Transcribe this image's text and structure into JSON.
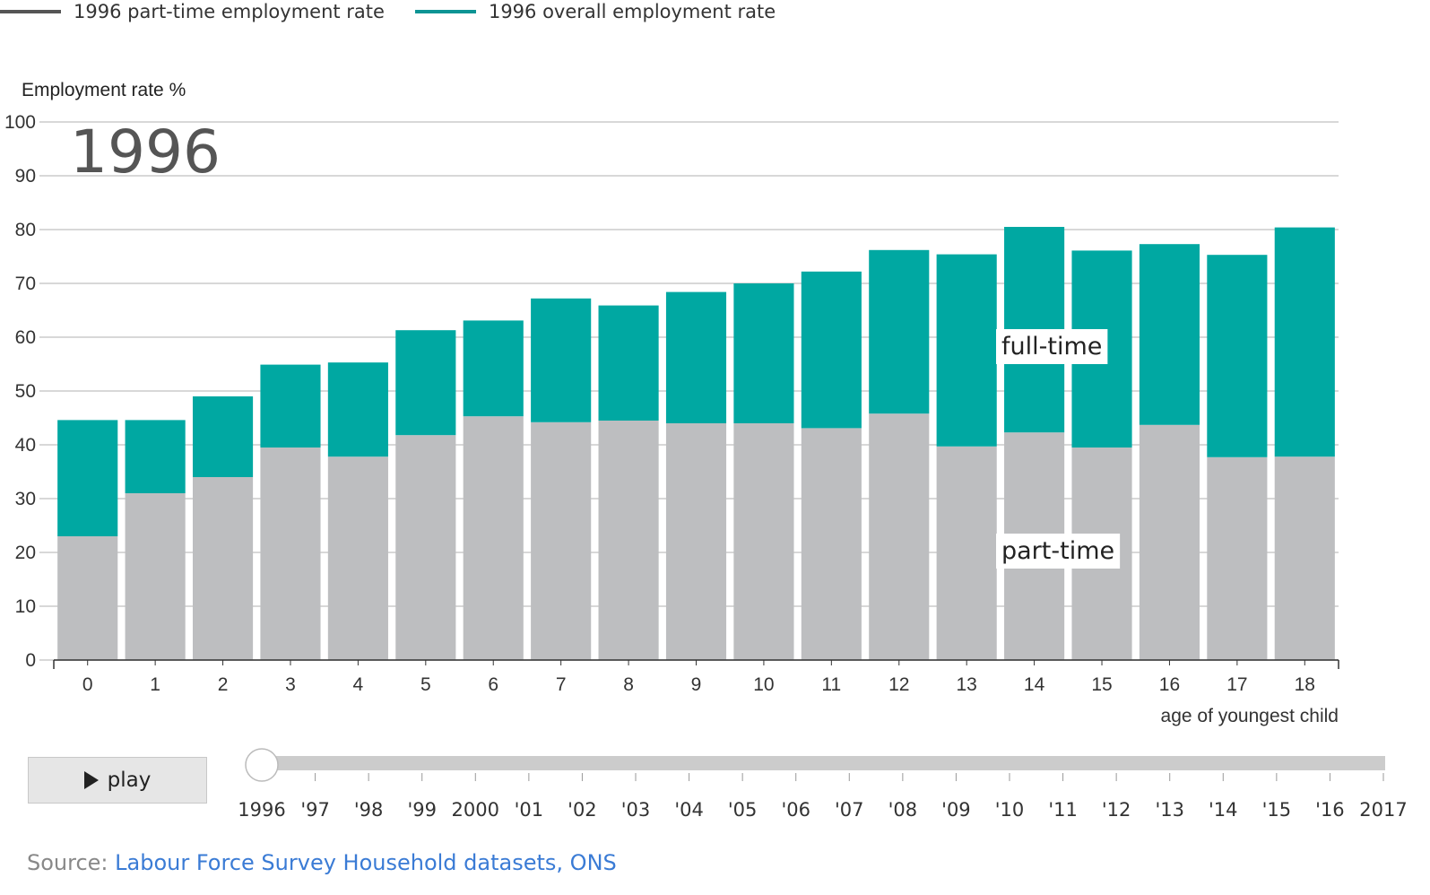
{
  "legend": {
    "part_time": "1996 part-time employment rate",
    "overall": "1996 overall employment rate"
  },
  "colors": {
    "part_time_bar": "#bdbec0",
    "full_time_bar": "#00a8a2",
    "legend_part_time": "#555555",
    "legend_overall": "#0d9494",
    "grid": "#cccccc",
    "slider_track": "#cccccc"
  },
  "chart_data": {
    "type": "bar",
    "stacked": true,
    "current_year": "1996",
    "ylabel": "Employment rate %",
    "xlabel": "age of youngest child",
    "ylim": [
      0,
      100
    ],
    "yticks": [
      0,
      10,
      20,
      30,
      40,
      50,
      60,
      70,
      80,
      90,
      100
    ],
    "grid": true,
    "categories": [
      "0",
      "1",
      "2",
      "3",
      "4",
      "5",
      "6",
      "7",
      "8",
      "9",
      "10",
      "11",
      "12",
      "13",
      "14",
      "15",
      "16",
      "17",
      "18"
    ],
    "series": [
      {
        "name": "part-time",
        "values": [
          23,
          31,
          34,
          39.5,
          37.8,
          41.8,
          45.3,
          44.2,
          44.5,
          44,
          44,
          43.1,
          45.8,
          39.7,
          42.3,
          39.5,
          43.7,
          37.7,
          37.8
        ]
      },
      {
        "name": "full-time",
        "values": [
          21.6,
          13.6,
          15,
          15.4,
          17.5,
          19.5,
          17.8,
          23,
          21.4,
          24.4,
          26,
          29.1,
          30.4,
          35.7,
          38.2,
          36.6,
          33.6,
          37.6,
          42.6
        ]
      }
    ],
    "totals": [
      44.6,
      44.6,
      49,
      54.9,
      55.3,
      61.3,
      63.1,
      67.2,
      65.9,
      68.4,
      70,
      72.2,
      76.2,
      75.4,
      80.5,
      76.1,
      77.3,
      75.3,
      80.4
    ],
    "segment_labels": {
      "full_time": "full-time",
      "part_time": "part-time"
    }
  },
  "controls": {
    "play_label": "play",
    "slider_ticks": [
      "1996",
      "'97",
      "'98",
      "'99",
      "2000",
      "'01",
      "'02",
      "'03",
      "'04",
      "'05",
      "'06",
      "'07",
      "'08",
      "'09",
      "'10",
      "'11",
      "'12",
      "'13",
      "'14",
      "'15",
      "'16",
      "2017"
    ],
    "slider_value_index": 0
  },
  "source": {
    "prefix": "Source: ",
    "link_text": "Labour Force Survey Household datasets, ONS"
  }
}
